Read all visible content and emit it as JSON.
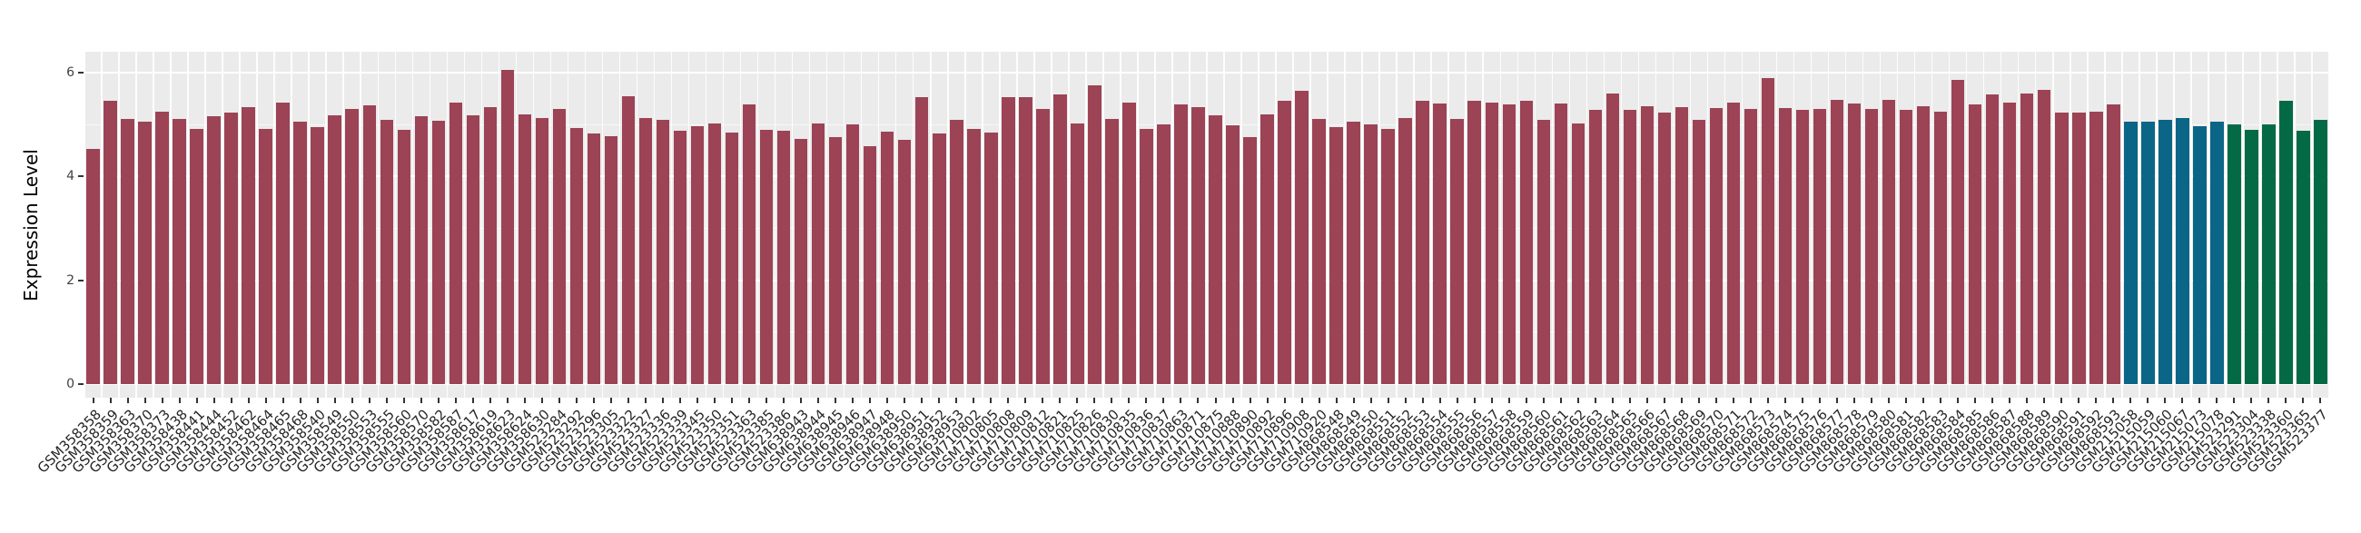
{
  "chart_data": {
    "type": "bar",
    "title": "",
    "xlabel": "",
    "ylabel": "Expression Level",
    "ylim": [
      0,
      6.35
    ],
    "ytick_values": [
      0,
      2,
      4,
      6
    ],
    "ytick_labels": [
      "0",
      "2",
      "4",
      "6"
    ],
    "yminor_values": [
      1,
      3,
      5
    ],
    "grid": "on",
    "legend": "none",
    "panel_bg": "#ebebeb",
    "group_colors": {
      "maroon": "#9c4355",
      "teal": "#0b6587",
      "green": "#046a46"
    },
    "group_spans": [
      {
        "color_key": "maroon",
        "count": 118
      },
      {
        "color_key": "teal",
        "count": 6
      },
      {
        "color_key": "green",
        "count": 6
      }
    ],
    "categories": [
      "GSM358358",
      "GSM358359",
      "GSM358363",
      "GSM358370",
      "GSM358373",
      "GSM358438",
      "GSM358441",
      "GSM358444",
      "GSM358452",
      "GSM358462",
      "GSM358464",
      "GSM358465",
      "GSM358468",
      "GSM358540",
      "GSM358549",
      "GSM358550",
      "GSM358553",
      "GSM358555",
      "GSM358560",
      "GSM358570",
      "GSM358582",
      "GSM358587",
      "GSM358617",
      "GSM358619",
      "GSM358623",
      "GSM358624",
      "GSM358630",
      "GSM523284",
      "GSM523292",
      "GSM523296",
      "GSM523305",
      "GSM523322",
      "GSM523327",
      "GSM523336",
      "GSM523339",
      "GSM523345",
      "GSM523350",
      "GSM523351",
      "GSM523363",
      "GSM523385",
      "GSM523386",
      "GSM638943",
      "GSM638944",
      "GSM638945",
      "GSM638946",
      "GSM638947",
      "GSM638948",
      "GSM638950",
      "GSM638951",
      "GSM638952",
      "GSM638953",
      "GSM710802",
      "GSM710805",
      "GSM710808",
      "GSM710809",
      "GSM710812",
      "GSM710821",
      "GSM710825",
      "GSM710826",
      "GSM710830",
      "GSM710835",
      "GSM710836",
      "GSM710837",
      "GSM710863",
      "GSM710871",
      "GSM710875",
      "GSM710888",
      "GSM710890",
      "GSM710892",
      "GSM710896",
      "GSM710908",
      "GSM710920",
      "GSM868548",
      "GSM868549",
      "GSM868550",
      "GSM868551",
      "GSM868552",
      "GSM868553",
      "GSM868554",
      "GSM868555",
      "GSM868556",
      "GSM868557",
      "GSM868558",
      "GSM868559",
      "GSM868560",
      "GSM868561",
      "GSM868562",
      "GSM868563",
      "GSM868564",
      "GSM868565",
      "GSM868566",
      "GSM868567",
      "GSM868568",
      "GSM868569",
      "GSM868570",
      "GSM868571",
      "GSM868572",
      "GSM868573",
      "GSM868574",
      "GSM868575",
      "GSM868576",
      "GSM868577",
      "GSM868578",
      "GSM868579",
      "GSM868580",
      "GSM868581",
      "GSM868582",
      "GSM868583",
      "GSM868584",
      "GSM868585",
      "GSM868586",
      "GSM868587",
      "GSM868588",
      "GSM868589",
      "GSM868590",
      "GSM868591",
      "GSM868592",
      "GSM868593",
      "GSM215058",
      "GSM215059",
      "GSM215060",
      "GSM215067",
      "GSM215073",
      "GSM215078",
      "GSM523291",
      "GSM523304",
      "GSM523338",
      "GSM523360",
      "GSM523365",
      "GSM523377"
    ],
    "values": [
      4.52,
      5.45,
      5.1,
      5.05,
      5.25,
      5.1,
      4.92,
      5.16,
      5.22,
      5.34,
      4.92,
      5.42,
      5.06,
      4.95,
      5.18,
      5.3,
      5.36,
      5.08,
      4.9,
      5.15,
      5.07,
      5.42,
      5.18,
      5.33,
      6.05,
      5.19,
      5.12,
      5.3,
      4.93,
      4.82,
      4.78,
      5.55,
      5.12,
      5.08,
      4.88,
      4.96,
      5.02,
      4.84,
      5.38,
      4.9,
      4.87,
      4.72,
      5.02,
      4.76,
      5.0,
      4.58,
      4.86,
      4.7,
      5.52,
      4.82,
      5.08,
      4.92,
      4.85,
      5.52,
      5.52,
      5.3,
      5.58,
      5.02,
      5.76,
      5.1,
      5.42,
      4.92,
      5.0,
      5.38,
      5.34,
      5.18,
      4.98,
      4.76,
      5.2,
      5.45,
      5.65,
      5.1,
      4.95,
      5.05,
      5.0,
      4.92,
      5.12,
      5.45,
      5.4,
      5.1,
      5.45,
      5.42,
      5.38,
      5.45,
      5.08,
      5.4,
      5.02,
      5.28,
      5.6,
      5.28,
      5.35,
      5.22,
      5.34,
      5.08,
      5.32,
      5.42,
      5.3,
      5.9,
      5.32,
      5.28,
      5.3,
      5.48,
      5.4,
      5.3,
      5.48,
      5.28,
      5.35,
      5.25,
      5.85,
      5.38,
      5.58,
      5.42,
      5.6,
      5.66,
      5.22,
      5.22,
      5.25,
      5.38,
      5.06,
      5.06,
      5.08,
      5.13,
      4.96,
      5.06,
      5.0,
      4.9,
      5.0,
      5.45,
      4.88,
      5.08
    ]
  }
}
